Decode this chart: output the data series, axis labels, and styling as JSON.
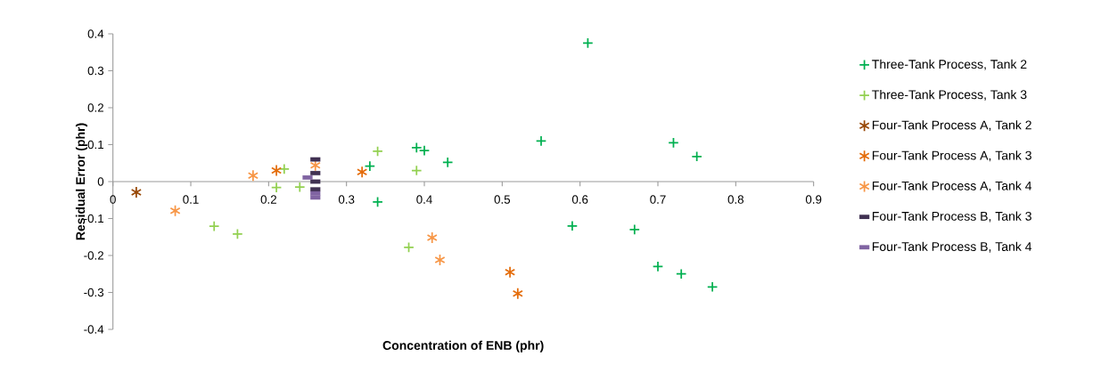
{
  "chart_data": {
    "type": "scatter",
    "xlabel": "Concentration of ENB (phr)",
    "ylabel": "Residual Error (phr)",
    "xlim": [
      0,
      0.9
    ],
    "ylim": [
      -0.4,
      0.4
    ],
    "xticks": [
      0,
      0.1,
      0.2,
      0.3,
      0.4,
      0.5,
      0.6,
      0.7,
      0.8,
      0.9
    ],
    "yticks": [
      -0.4,
      -0.3,
      -0.2,
      -0.1,
      0,
      0.1,
      0.2,
      0.3,
      0.4
    ],
    "grid": false,
    "legend": "right",
    "series": [
      {
        "name": "Three-Tank Process, Tank 2",
        "color": "#00b050",
        "marker": "cross",
        "x": [
          0.61,
          0.55,
          0.72,
          0.75,
          0.43,
          0.39,
          0.4,
          0.33,
          0.34,
          0.59,
          0.67,
          0.7,
          0.73,
          0.77
        ],
        "values": [
          0.375,
          0.11,
          0.105,
          0.068,
          0.052,
          0.092,
          0.084,
          0.042,
          -0.055,
          -0.12,
          -0.13,
          -0.23,
          -0.25,
          -0.285
        ]
      },
      {
        "name": "Three-Tank Process, Tank 3",
        "color": "#92d050",
        "marker": "cross",
        "x": [
          0.34,
          0.39,
          0.38,
          0.13,
          0.16,
          0.21,
          0.22,
          0.24
        ],
        "values": [
          0.082,
          0.03,
          -0.178,
          -0.121,
          -0.142,
          -0.016,
          0.034,
          -0.015
        ]
      },
      {
        "name": "Four-Tank Process A, Tank 2",
        "color": "#984807",
        "x": [
          0.03
        ],
        "values": [
          -0.029
        ]
      },
      {
        "name": "Four-Tank Process A, Tank 3",
        "color": "#e46c0a",
        "x": [
          0.21,
          0.32,
          0.51,
          0.52
        ],
        "values": [
          0.03,
          0.026,
          -0.245,
          -0.303
        ]
      },
      {
        "name": "Four-Tank Process A, Tank 4",
        "color": "#f79646",
        "x": [
          0.08,
          0.18,
          0.26,
          0.41,
          0.42
        ],
        "values": [
          -0.079,
          0.016,
          0.044,
          -0.152,
          -0.212
        ]
      },
      {
        "name": "Four-Tank Process B, Tank 3",
        "color": "#403152",
        "marker": "square",
        "x": [
          0.26,
          0.26,
          0.26,
          0.26
        ],
        "values": [
          0.06,
          0.023,
          0,
          -0.021
        ]
      },
      {
        "name": "Four-Tank Process B, Tank 4",
        "color": "#8064a2",
        "marker": "square",
        "x": [
          0.25,
          0.26,
          0.26
        ],
        "values": [
          0.011,
          -0.032,
          -0.043
        ]
      }
    ]
  }
}
